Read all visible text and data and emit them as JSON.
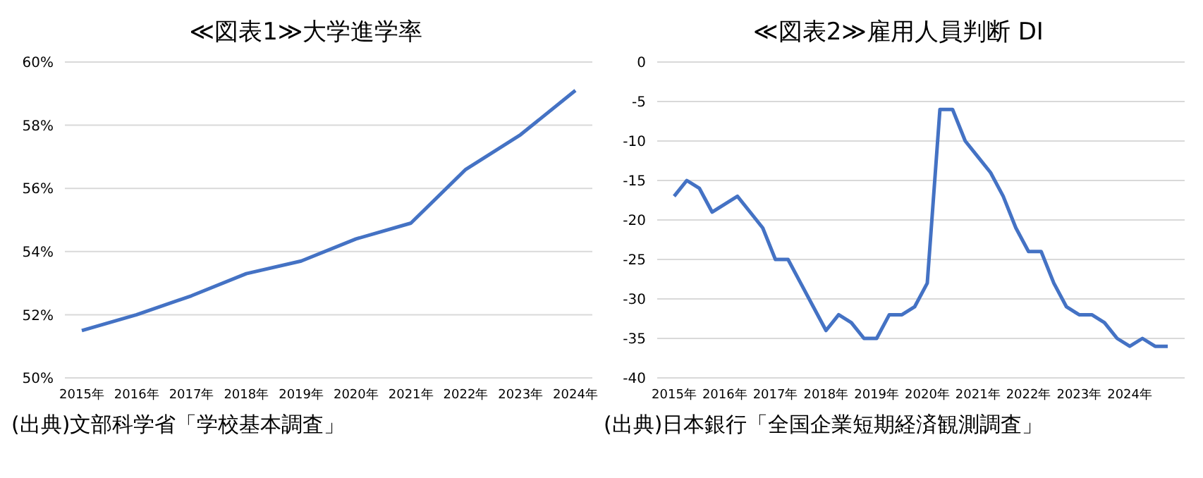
{
  "chart_data": [
    {
      "type": "line",
      "title": "≪図表1≫大学進学率",
      "categories": [
        "2015年",
        "2016年",
        "2017年",
        "2018年",
        "2019年",
        "2020年",
        "2021年",
        "2022年",
        "2023年",
        "2024年"
      ],
      "series": [
        {
          "color": "#4472c4",
          "values": [
            51.5,
            52.0,
            52.6,
            53.3,
            53.7,
            54.4,
            54.9,
            56.6,
            57.7,
            59.1
          ]
        }
      ],
      "ylim": [
        50,
        60
      ],
      "yticks": [
        {
          "value": 50,
          "label": "50%"
        },
        {
          "value": 52,
          "label": "52%"
        },
        {
          "value": 54,
          "label": "54%"
        },
        {
          "value": 56,
          "label": "56%"
        },
        {
          "value": 58,
          "label": "58%"
        },
        {
          "value": 60,
          "label": "60%"
        }
      ],
      "grid": "y",
      "legend": false,
      "marker": "none",
      "line_style": "solid",
      "annotations": [
        "(出典)文部科学省「学校基本調査」"
      ]
    },
    {
      "type": "line",
      "title": "≪図表2≫雇用人員判断 DI",
      "categories": [
        "2015年",
        null,
        null,
        null,
        "2016年",
        null,
        null,
        null,
        "2017年",
        null,
        null,
        null,
        "2018年",
        null,
        null,
        null,
        "2019年",
        null,
        null,
        null,
        "2020年",
        null,
        null,
        null,
        "2021年",
        null,
        null,
        null,
        "2022年",
        null,
        null,
        null,
        "2023年",
        null,
        null,
        null,
        "2024年",
        null,
        null,
        null
      ],
      "series": [
        {
          "color": "#4472c4",
          "values": [
            -17,
            -15,
            -16,
            -19,
            -18,
            -17,
            -19,
            -21,
            -25,
            -25,
            -28,
            -31,
            -34,
            -32,
            -33,
            -35,
            -35,
            -32,
            -32,
            -31,
            -28,
            -6,
            -6,
            -10,
            -12,
            -14,
            -17,
            -21,
            -24,
            -24,
            -28,
            -31,
            -32,
            -32,
            -33,
            -35,
            -36,
            -35,
            -36,
            -36
          ]
        }
      ],
      "ylim": [
        -40,
        0
      ],
      "yticks": [
        -40,
        -35,
        -30,
        -25,
        -20,
        -15,
        -10,
        -5,
        0
      ],
      "grid": "y",
      "legend": false,
      "marker": "none",
      "line_style": "solid",
      "annotations": [
        "(出典)日本銀行「全国企業短期経済観測調査」"
      ]
    }
  ]
}
